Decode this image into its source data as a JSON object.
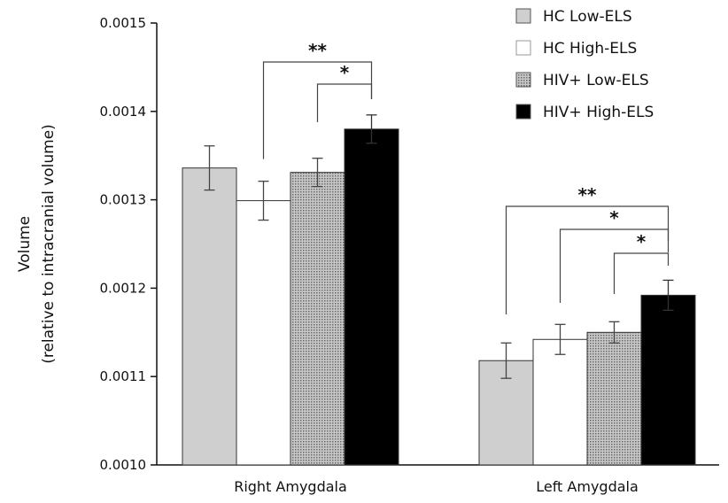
{
  "chart_data": {
    "type": "bar",
    "ylabel": "Volume",
    "ylabel_sub": "(relative to intracranial volume)",
    "ylim": [
      0.001,
      0.0015
    ],
    "yticks": [
      "0.0010",
      "0.0011",
      "0.0012",
      "0.0013",
      "0.0014",
      "0.0015"
    ],
    "categories": [
      "Right Amygdala",
      "Left Amygdala"
    ],
    "legend_position": "top-right",
    "series": [
      {
        "name": "HC Low-ELS",
        "color": "#cfcfcf",
        "pattern": "solid-gray",
        "values": [
          0.001336,
          0.001118
        ],
        "errors": [
          2.5e-05,
          2e-05
        ]
      },
      {
        "name": "HC High-ELS",
        "color": "#ffffff",
        "pattern": "white",
        "values": [
          0.001299,
          0.001142
        ],
        "errors": [
          2.2e-05,
          1.7e-05
        ]
      },
      {
        "name": "HIV+ Low-ELS",
        "color": "#9a9a9a",
        "pattern": "dotted-gray",
        "values": [
          0.001331,
          0.00115
        ],
        "errors": [
          1.6e-05,
          1.2e-05
        ]
      },
      {
        "name": "HIV+ High-ELS",
        "color": "#000000",
        "pattern": "solid-black",
        "values": [
          0.00138,
          0.001192
        ],
        "errors": [
          1.6e-05,
          1.7e-05
        ]
      }
    ],
    "significance": [
      {
        "category": 0,
        "from": 1,
        "to": 3,
        "label": "**"
      },
      {
        "category": 0,
        "from": 2,
        "to": 3,
        "label": "*"
      },
      {
        "category": 1,
        "from": 0,
        "to": 3,
        "label": "**"
      },
      {
        "category": 1,
        "from": 1,
        "to": 3,
        "label": "*"
      },
      {
        "category": 1,
        "from": 2,
        "to": 3,
        "label": "*"
      }
    ]
  }
}
